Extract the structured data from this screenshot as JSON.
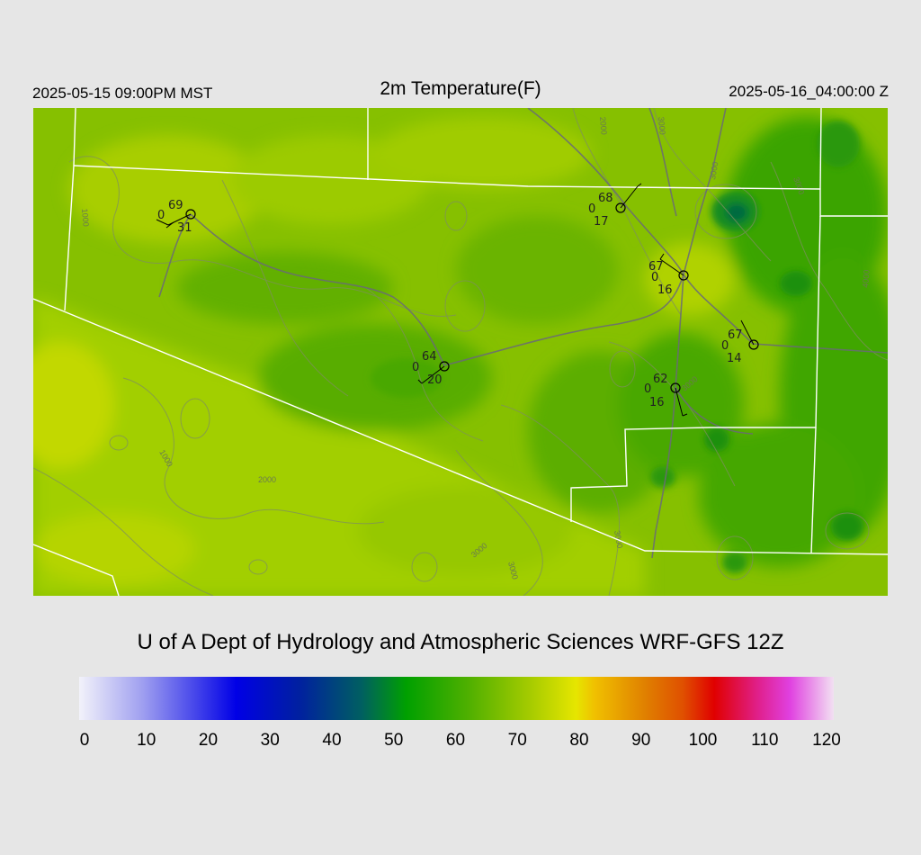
{
  "header": {
    "left_time": "2025-05-15 09:00PM MST",
    "title": "2m Temperature(F)",
    "right_time": "2025-05-16_04:00:00 Z"
  },
  "credit": "U of A Dept of Hydrology and Atmospheric Sciences WRF-GFS 12Z",
  "colorbar": {
    "unit": "F",
    "labels": [
      "0",
      "10",
      "20",
      "30",
      "40",
      "50",
      "60",
      "70",
      "80",
      "90",
      "100",
      "110",
      "120"
    ],
    "stops": [
      {
        "value": 0,
        "color": "#f2f2fa"
      },
      {
        "value": 10,
        "color": "#a0a0f0"
      },
      {
        "value": 25,
        "color": "#0000e6"
      },
      {
        "value": 35,
        "color": "#0020a0"
      },
      {
        "value": 45,
        "color": "#006060"
      },
      {
        "value": 52,
        "color": "#00a000"
      },
      {
        "value": 62,
        "color": "#50b000"
      },
      {
        "value": 72,
        "color": "#a8cc00"
      },
      {
        "value": 79,
        "color": "#e6e600"
      },
      {
        "value": 82,
        "color": "#f0c000"
      },
      {
        "value": 90,
        "color": "#e08000"
      },
      {
        "value": 96,
        "color": "#e05000"
      },
      {
        "value": 101,
        "color": "#e00000"
      },
      {
        "value": 108,
        "color": "#e0208c"
      },
      {
        "value": 113,
        "color": "#e040e0"
      },
      {
        "value": 120,
        "color": "#f2e0f2"
      }
    ]
  },
  "contour_labels": [
    "1000",
    "1000",
    "2000",
    "3000",
    "3000",
    "2000",
    "3000",
    "3000",
    "3000",
    "4000",
    "3000",
    "3000"
  ],
  "stations": [
    {
      "temp": "69",
      "cloud": "0",
      "dewpoint": "31"
    },
    {
      "temp": "68",
      "cloud": "0",
      "dewpoint": "17"
    },
    {
      "temp": "67",
      "cloud": "0",
      "dewpoint": "16"
    },
    {
      "temp": "64",
      "cloud": "0",
      "dewpoint": "20"
    },
    {
      "temp": "67",
      "cloud": "0",
      "dewpoint": "14"
    },
    {
      "temp": "62",
      "cloud": "0",
      "dewpoint": "16"
    }
  ]
}
